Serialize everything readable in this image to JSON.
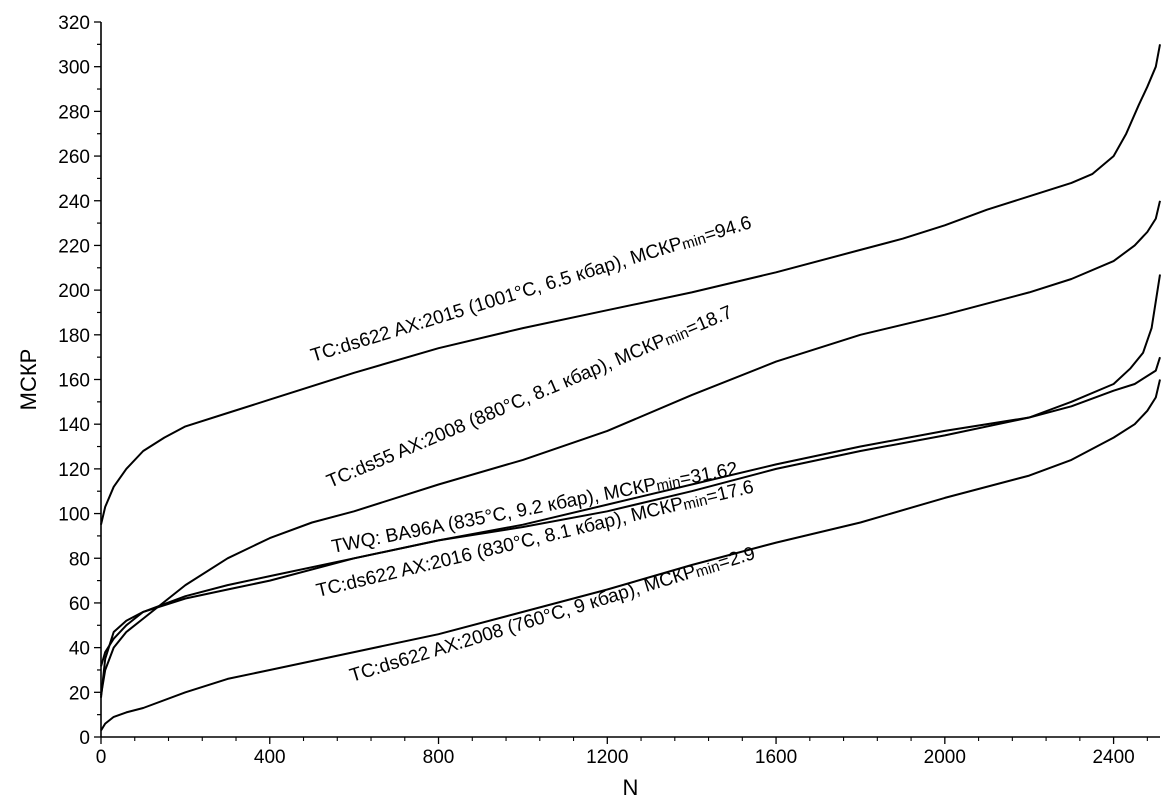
{
  "chart_data": {
    "type": "line",
    "xlabel": "N",
    "ylabel": "МСКР",
    "xlim": [
      0,
      2510
    ],
    "ylim": [
      0,
      320
    ],
    "xticks": [
      0,
      400,
      800,
      1200,
      1600,
      2000,
      2400
    ],
    "yticks": [
      0,
      20,
      40,
      60,
      80,
      100,
      120,
      140,
      160,
      180,
      200,
      220,
      240,
      260,
      280,
      300,
      320
    ],
    "grid": false,
    "legend": "inline",
    "line_color": "#000000",
    "series": [
      {
        "label_main": "TC:ds622 AX:2015 (1001°C, 6.5 кбар), МСКР",
        "label_sub": "min",
        "label_value": "=94.6",
        "x": [
          0,
          10,
          30,
          60,
          100,
          150,
          200,
          300,
          400,
          600,
          800,
          1000,
          1200,
          1400,
          1600,
          1800,
          1900,
          2000,
          2100,
          2200,
          2300,
          2350,
          2400,
          2430,
          2460,
          2480,
          2500,
          2510
        ],
        "y": [
          95,
          103,
          112,
          120,
          128,
          134,
          139,
          145,
          151,
          163,
          174,
          183,
          191,
          199,
          208,
          218,
          223,
          229,
          236,
          242,
          248,
          252,
          260,
          270,
          283,
          291,
          300,
          310
        ]
      },
      {
        "label_main": "TC:ds55 AX:2008 (880°C, 8.1 кбар), МСКР",
        "label_sub": "min",
        "label_value": "=18.7",
        "x": [
          0,
          10,
          30,
          60,
          100,
          200,
          300,
          400,
          500,
          600,
          800,
          1000,
          1200,
          1400,
          1600,
          1800,
          2000,
          2200,
          2300,
          2400,
          2450,
          2480,
          2500,
          2510
        ],
        "y": [
          18.7,
          30,
          40,
          47,
          53,
          68,
          80,
          89,
          96,
          101,
          113,
          124,
          137,
          153,
          168,
          180,
          189,
          199,
          205,
          213,
          220,
          226,
          232,
          240
        ]
      },
      {
        "label_main": "TWQ: BA96A (835°C, 9.2 кбар), МСКР",
        "label_sub": "min",
        "label_value": "=31.62",
        "x": [
          0,
          10,
          30,
          60,
          100,
          200,
          300,
          400,
          600,
          800,
          1000,
          1200,
          1400,
          1600,
          1800,
          2000,
          2200,
          2300,
          2400,
          2450,
          2500,
          2510
        ],
        "y": [
          31.6,
          38,
          44,
          50,
          56,
          63,
          68,
          72,
          80,
          88,
          95,
          104,
          113,
          122,
          130,
          137,
          143,
          148,
          155,
          158,
          164,
          170
        ]
      },
      {
        "label_main": "TC:ds622 AX:2016 (830°C, 8.1 кбар), МСКР",
        "label_sub": "min",
        "label_value": "=17.6",
        "x": [
          0,
          10,
          30,
          60,
          100,
          200,
          300,
          400,
          600,
          800,
          1000,
          1200,
          1400,
          1600,
          1800,
          2000,
          2200,
          2300,
          2400,
          2440,
          2470,
          2490,
          2500,
          2510
        ],
        "y": [
          17.6,
          35,
          47,
          52,
          56,
          62,
          66,
          70,
          80,
          88,
          94,
          101,
          110,
          120,
          128,
          135,
          143,
          150,
          158,
          165,
          172,
          183,
          195,
          207
        ]
      },
      {
        "label_main": "TC:ds622 AX:2008 (760°C, 9 кбар), МСКР",
        "label_sub": "min",
        "label_value": "=2.9",
        "x": [
          0,
          10,
          30,
          60,
          100,
          200,
          300,
          400,
          600,
          800,
          1000,
          1200,
          1400,
          1600,
          1800,
          2000,
          2200,
          2300,
          2400,
          2450,
          2480,
          2500,
          2510
        ],
        "y": [
          2.9,
          6,
          9,
          11,
          13,
          20,
          26,
          30,
          38,
          46,
          56,
          66,
          77,
          87,
          96,
          107,
          117,
          124,
          134,
          140,
          146,
          152,
          160
        ]
      }
    ]
  }
}
